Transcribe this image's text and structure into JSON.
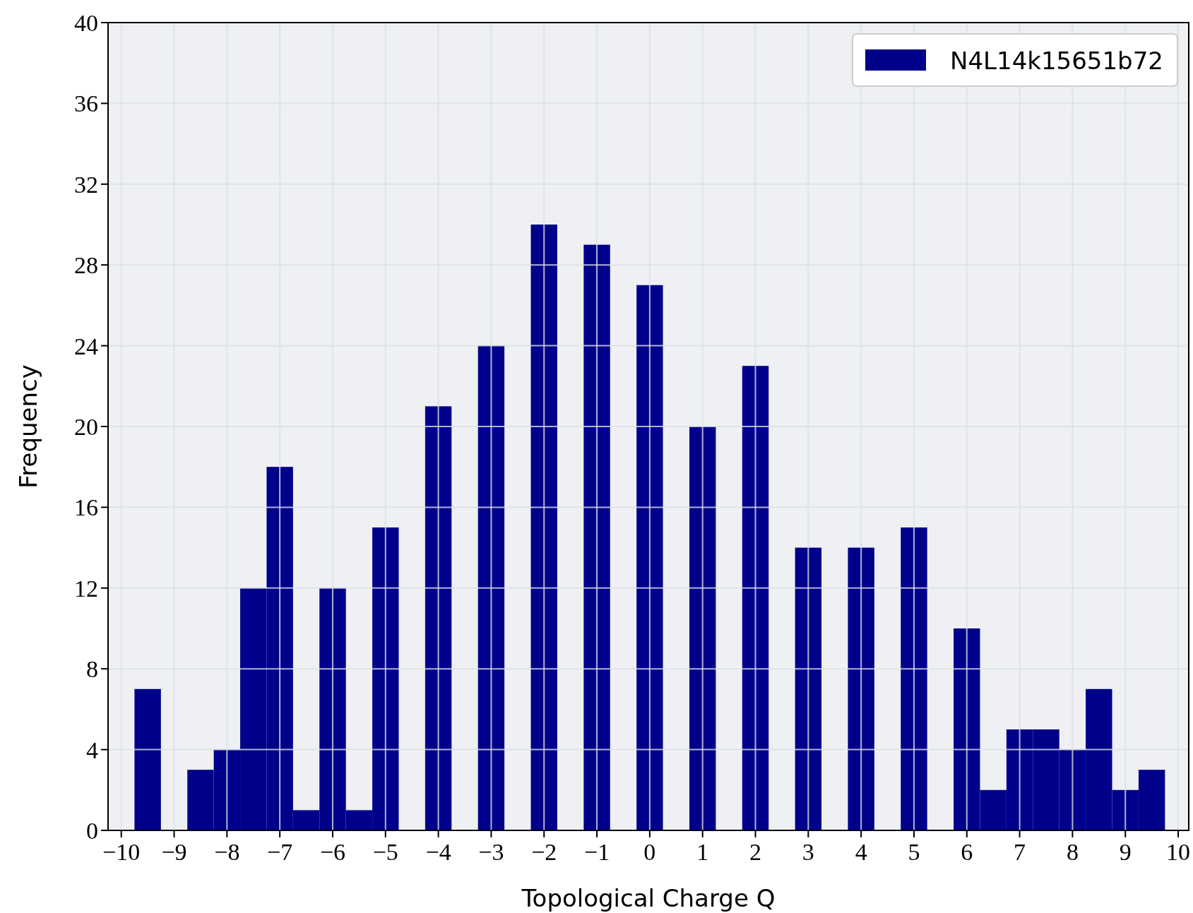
{
  "chart_data": {
    "type": "histogram",
    "xlabel": "Topological Charge Q",
    "ylabel": "Frequency",
    "bins": [
      -9.75,
      -9.25,
      -8.75,
      -8.25,
      -7.75,
      -7.25,
      -6.75,
      -6.25,
      -5.75,
      -5.25,
      -4.75,
      -4.25,
      -3.75,
      -3.25,
      -2.75,
      -2.25,
      -1.75,
      -1.25,
      -0.75,
      -0.25,
      0.25,
      0.75,
      1.25,
      1.75,
      2.25,
      2.75,
      3.25,
      3.75,
      4.25,
      4.75,
      5.25,
      5.75,
      6.25,
      6.75,
      7.25,
      7.75,
      8.25,
      8.75,
      9.25,
      9.75
    ],
    "series": [
      {
        "name": "N4L14k15651b72",
        "color": "#00008b",
        "values": [
          7,
          0,
          3,
          4,
          12,
          18,
          1,
          12,
          1,
          15,
          0,
          21,
          0,
          24,
          0,
          30,
          0,
          29,
          0,
          27,
          0,
          20,
          0,
          23,
          0,
          14,
          0,
          14,
          0,
          15,
          0,
          10,
          2,
          5,
          5,
          4,
          7,
          2,
          3
        ]
      }
    ],
    "xlim": [
      -10.25,
      10.2
    ],
    "ylim": [
      0,
      40
    ],
    "xticks": [
      {
        "value": -10,
        "label": "−10"
      },
      {
        "value": -9,
        "label": "−9"
      },
      {
        "value": -8,
        "label": "−8"
      },
      {
        "value": -7,
        "label": "−7"
      },
      {
        "value": -6,
        "label": "−6"
      },
      {
        "value": -5,
        "label": "−5"
      },
      {
        "value": -4,
        "label": "−4"
      },
      {
        "value": -3,
        "label": "−3"
      },
      {
        "value": -2,
        "label": "−2"
      },
      {
        "value": -1,
        "label": "−1"
      },
      0,
      1,
      2,
      3,
      4,
      5,
      6,
      7,
      8,
      9,
      10
    ],
    "yticks": [
      0,
      4,
      8,
      12,
      16,
      20,
      24,
      28,
      32,
      36,
      40
    ],
    "grid": true,
    "legend": "top right"
  }
}
